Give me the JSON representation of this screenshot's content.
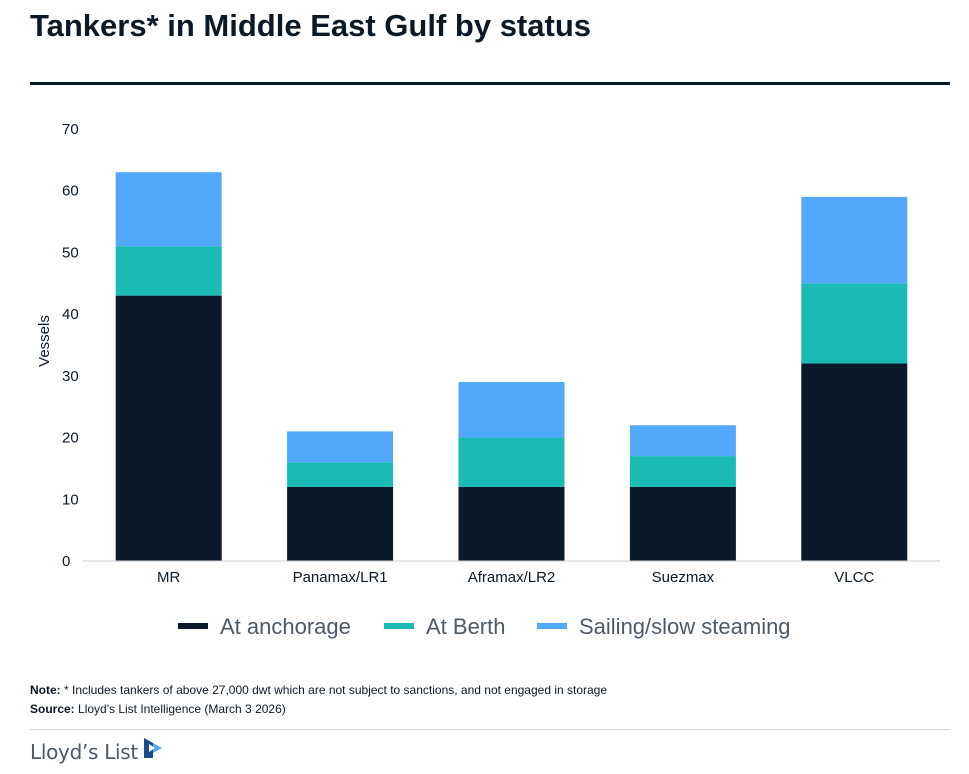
{
  "header": {
    "title": "Tankers* in Middle East Gulf by status"
  },
  "chart_data": {
    "type": "bar",
    "stacked": true,
    "categories": [
      "MR",
      "Panamax/LR1",
      "Aframax/LR2",
      "Suezmax",
      "VLCC"
    ],
    "series": [
      {
        "name": "At anchorage",
        "color": "#0b1a2b",
        "values": [
          43,
          12,
          12,
          12,
          32
        ]
      },
      {
        "name": "At Berth",
        "color": "#1cbab4",
        "values": [
          8,
          4,
          8,
          5,
          13
        ]
      },
      {
        "name": "Sailing/slow steaming",
        "color": "#52a8fa",
        "values": [
          12,
          5,
          9,
          5,
          14
        ]
      }
    ],
    "ylabel": "Vessels",
    "ylim": [
      0,
      70
    ],
    "yticks": [
      0,
      10,
      20,
      30,
      40,
      50,
      60,
      70
    ],
    "grid": false,
    "legend": "bottom"
  },
  "notes": {
    "note_label": "Note:",
    "note_text": " * Includes tankers of above 27,000 dwt which are not subject to sanctions, and not engaged in storage",
    "source_label": "Source:",
    "source_text": " Lloyd's List Intelligence (March 3 2026)"
  },
  "footer": {
    "logo_text": "Lloyd’s List"
  }
}
